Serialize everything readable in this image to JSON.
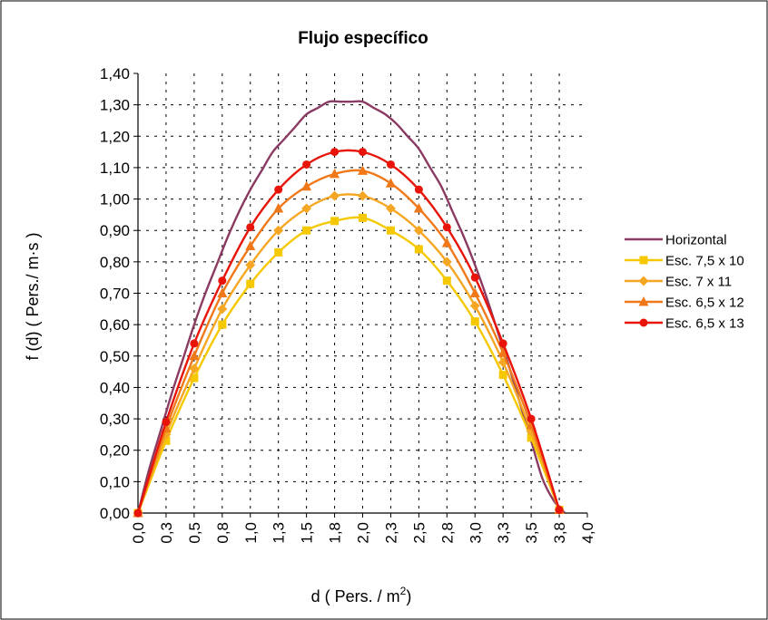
{
  "chart_data": {
    "type": "line",
    "title": "Flujo específico",
    "xlabel": "d  ( Pers. / m",
    "xlabel_sup": "2",
    "xlabel_end": ")",
    "ylabel": "f (d)  ( Pers./ m·s )",
    "xlim": [
      0,
      4.0
    ],
    "ylim": [
      0,
      1.4
    ],
    "grid": true,
    "legend_position": "right",
    "x_ticks": [
      {
        "value": 0.0,
        "label": "0,0"
      },
      {
        "value": 0.25,
        "label": "0,3"
      },
      {
        "value": 0.5,
        "label": "0,5"
      },
      {
        "value": 0.75,
        "label": "0,8"
      },
      {
        "value": 1.0,
        "label": "1,0"
      },
      {
        "value": 1.25,
        "label": "1,3"
      },
      {
        "value": 1.5,
        "label": "1,5"
      },
      {
        "value": 1.75,
        "label": "1,8"
      },
      {
        "value": 2.0,
        "label": "2,0"
      },
      {
        "value": 2.25,
        "label": "2,3"
      },
      {
        "value": 2.5,
        "label": "2,5"
      },
      {
        "value": 2.75,
        "label": "2,8"
      },
      {
        "value": 3.0,
        "label": "3,0"
      },
      {
        "value": 3.25,
        "label": "3,3"
      },
      {
        "value": 3.5,
        "label": "3,5"
      },
      {
        "value": 3.75,
        "label": "3,8"
      },
      {
        "value": 4.0,
        "label": "4,0"
      }
    ],
    "y_ticks": [
      {
        "value": 0.0,
        "label": "0,00"
      },
      {
        "value": 0.1,
        "label": "0,10"
      },
      {
        "value": 0.2,
        "label": "0,20"
      },
      {
        "value": 0.3,
        "label": "0,30"
      },
      {
        "value": 0.4,
        "label": "0,40"
      },
      {
        "value": 0.5,
        "label": "0,50"
      },
      {
        "value": 0.6,
        "label": "0,60"
      },
      {
        "value": 0.7,
        "label": "0,70"
      },
      {
        "value": 0.8,
        "label": "0,80"
      },
      {
        "value": 0.9,
        "label": "0,90"
      },
      {
        "value": 1.0,
        "label": "1,00"
      },
      {
        "value": 1.1,
        "label": "1,10"
      },
      {
        "value": 1.2,
        "label": "1,20"
      },
      {
        "value": 1.3,
        "label": "1,30"
      },
      {
        "value": 1.4,
        "label": "1,40"
      }
    ],
    "series": [
      {
        "name": "Horizontal",
        "color": "#8b3a62",
        "marker": "none",
        "x": [
          0,
          0.1,
          0.2,
          0.3,
          0.4,
          0.5,
          0.6,
          0.7,
          0.8,
          0.9,
          1.0,
          1.1,
          1.2,
          1.3,
          1.4,
          1.5,
          1.6,
          1.7,
          1.8,
          1.9,
          2.0,
          2.1,
          2.2,
          2.3,
          2.4,
          2.5,
          2.6,
          2.7,
          2.8,
          2.9,
          3.0,
          3.1,
          3.2,
          3.3,
          3.4,
          3.5,
          3.6,
          3.7,
          3.8
        ],
        "y": [
          0,
          0.14,
          0.26,
          0.38,
          0.49,
          0.6,
          0.7,
          0.79,
          0.88,
          0.96,
          1.03,
          1.09,
          1.15,
          1.19,
          1.23,
          1.27,
          1.29,
          1.31,
          1.31,
          1.31,
          1.31,
          1.29,
          1.27,
          1.24,
          1.2,
          1.16,
          1.1,
          1.04,
          0.96,
          0.88,
          0.79,
          0.69,
          0.58,
          0.47,
          0.35,
          0.23,
          0.11,
          0.04,
          0.0
        ]
      },
      {
        "name": "Esc. 7,5 x 10",
        "color": "#f5c800",
        "marker": "square",
        "x": [
          0,
          0.25,
          0.5,
          0.75,
          1.0,
          1.25,
          1.5,
          1.75,
          2.0,
          2.25,
          2.5,
          2.75,
          3.0,
          3.25,
          3.5,
          3.75
        ],
        "y": [
          0.0,
          0.23,
          0.43,
          0.6,
          0.73,
          0.83,
          0.9,
          0.93,
          0.94,
          0.9,
          0.84,
          0.74,
          0.61,
          0.44,
          0.24,
          0.01
        ]
      },
      {
        "name": "Esc. 7 x 11",
        "color": "#f5a623",
        "marker": "diamond",
        "x": [
          0,
          0.25,
          0.5,
          0.75,
          1.0,
          1.25,
          1.5,
          1.75,
          2.0,
          2.25,
          2.5,
          2.75,
          3.0,
          3.25,
          3.5,
          3.75
        ],
        "y": [
          0.0,
          0.25,
          0.46,
          0.65,
          0.79,
          0.9,
          0.97,
          1.01,
          1.01,
          0.97,
          0.9,
          0.8,
          0.66,
          0.48,
          0.26,
          0.01
        ]
      },
      {
        "name": "Esc. 6,5 x 12",
        "color": "#f07818",
        "marker": "triangle",
        "x": [
          0,
          0.25,
          0.5,
          0.75,
          1.0,
          1.25,
          1.5,
          1.75,
          2.0,
          2.25,
          2.5,
          2.75,
          3.0,
          3.25,
          3.5,
          3.75
        ],
        "y": [
          0.0,
          0.27,
          0.5,
          0.7,
          0.85,
          0.97,
          1.04,
          1.08,
          1.09,
          1.05,
          0.97,
          0.86,
          0.7,
          0.51,
          0.28,
          0.01
        ]
      },
      {
        "name": "Esc. 6,5 x 13",
        "color": "#e8140a",
        "marker": "circle",
        "x": [
          0,
          0.25,
          0.5,
          0.75,
          1.0,
          1.25,
          1.5,
          1.75,
          2.0,
          2.25,
          2.5,
          2.75,
          3.0,
          3.25,
          3.5,
          3.75
        ],
        "y": [
          0.0,
          0.29,
          0.54,
          0.74,
          0.91,
          1.03,
          1.11,
          1.15,
          1.15,
          1.11,
          1.03,
          0.91,
          0.75,
          0.54,
          0.3,
          0.01
        ]
      }
    ]
  }
}
